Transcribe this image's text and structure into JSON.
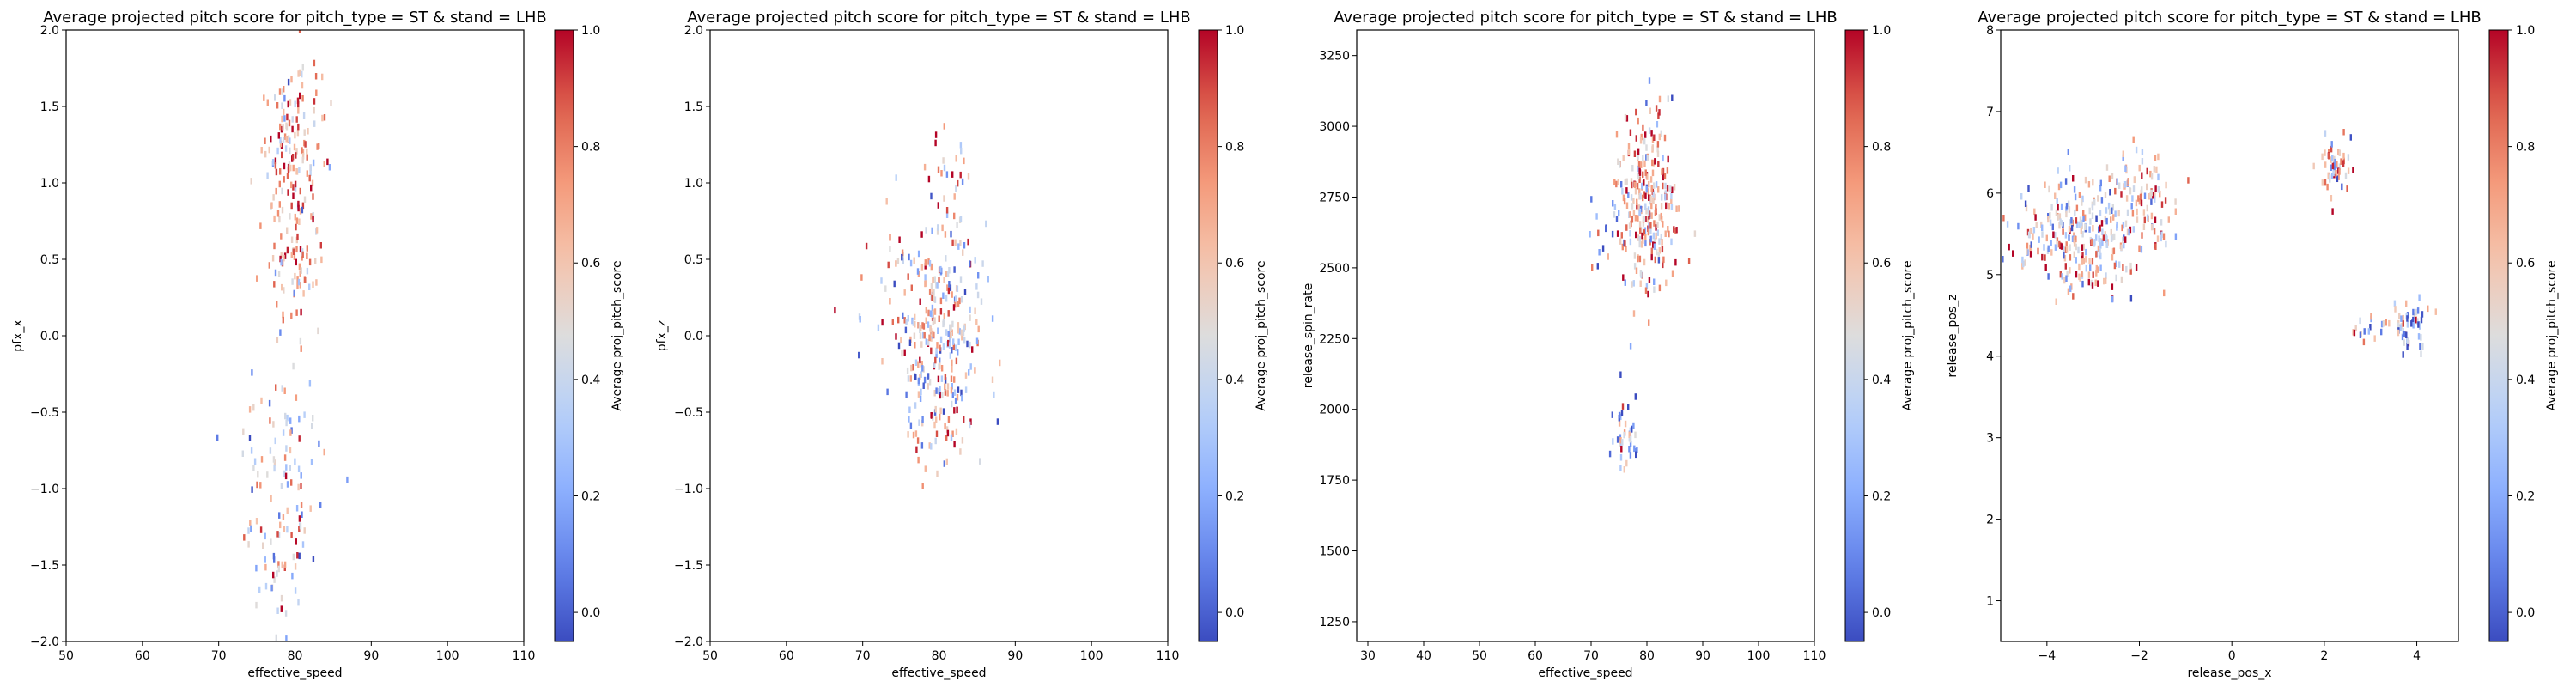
{
  "figure_title": "",
  "chart_data": [
    {
      "type": "heatmap",
      "title": "Average projected pitch score for pitch_type = ST & stand = LHB",
      "xlabel": "effective_speed",
      "ylabel": "pfx_x",
      "xlim": [
        50,
        110
      ],
      "ylim": [
        -2.0,
        2.0
      ],
      "xticks": [
        50,
        60,
        70,
        80,
        90,
        100,
        110
      ],
      "yticks": [
        -2.0,
        -1.5,
        -1.0,
        -0.5,
        0.0,
        0.5,
        1.0,
        1.5,
        2.0
      ],
      "xtick_labels": [
        "50",
        "60",
        "70",
        "80",
        "90",
        "100",
        "110"
      ],
      "ytick_labels": [
        "−2.0",
        "−1.5",
        "−1.0",
        "−0.5",
        "0.0",
        "0.5",
        "1.0",
        "1.5",
        "2.0"
      ],
      "colorbar": {
        "label": "Average proj_pitch_score",
        "cmap": "coolwarm",
        "range": [
          -0.05,
          1.0
        ],
        "ticks": [
          0.0,
          0.2,
          0.4,
          0.6,
          0.8,
          1.0
        ],
        "tick_labels": [
          "0.0",
          "0.2",
          "0.4",
          "0.6",
          "0.8",
          "1.0"
        ]
      },
      "clusters": [
        {
          "x": 80.0,
          "y": 1.15,
          "sx": 2.2,
          "sy": 0.38,
          "n": 170,
          "mean": 0.7,
          "spread": 0.22
        },
        {
          "x": 80.5,
          "y": 0.45,
          "sx": 1.5,
          "sy": 0.2,
          "n": 60,
          "mean": 0.65,
          "spread": 0.25
        },
        {
          "x": 78.0,
          "y": -1.2,
          "sx": 2.6,
          "sy": 0.45,
          "n": 120,
          "mean": 0.45,
          "spread": 0.3
        },
        {
          "x": 79.0,
          "y": -0.6,
          "sx": 0.8,
          "sy": 0.15,
          "n": 10,
          "mean": 0.4,
          "spread": 0.3
        }
      ]
    },
    {
      "type": "heatmap",
      "title": "Average projected pitch score for pitch_type = ST & stand = LHB",
      "xlabel": "effective_speed",
      "ylabel": "pfx_z",
      "xlim": [
        50,
        110
      ],
      "ylim": [
        -2.0,
        2.0
      ],
      "xticks": [
        50,
        60,
        70,
        80,
        90,
        100,
        110
      ],
      "yticks": [
        -2.0,
        -1.5,
        -1.0,
        -0.5,
        0.0,
        0.5,
        1.0,
        1.5,
        2.0
      ],
      "xtick_labels": [
        "50",
        "60",
        "70",
        "80",
        "90",
        "100",
        "110"
      ],
      "ytick_labels": [
        "−2.0",
        "−1.5",
        "−1.0",
        "−0.5",
        "0.0",
        "0.5",
        "1.0",
        "1.5",
        "2.0"
      ],
      "colorbar": {
        "label": "Average proj_pitch_score",
        "cmap": "coolwarm",
        "range": [
          -0.05,
          1.0
        ],
        "ticks": [
          0.0,
          0.2,
          0.4,
          0.6,
          0.8,
          1.0
        ],
        "tick_labels": [
          "0.0",
          "0.2",
          "0.4",
          "0.6",
          "0.8",
          "1.0"
        ]
      },
      "clusters": [
        {
          "x": 80.0,
          "y": 0.0,
          "sx": 2.8,
          "sy": 0.42,
          "n": 330,
          "mean": 0.55,
          "spread": 0.3
        },
        {
          "x": 81.0,
          "y": 1.0,
          "sx": 1.5,
          "sy": 0.2,
          "n": 20,
          "mean": 0.7,
          "spread": 0.25
        },
        {
          "x": 73.0,
          "y": 0.3,
          "sx": 2.5,
          "sy": 0.35,
          "n": 25,
          "mean": 0.5,
          "spread": 0.35
        }
      ]
    },
    {
      "type": "heatmap",
      "title": "Average projected pitch score for pitch_type = ST & stand = LHB",
      "xlabel": "effective_speed",
      "ylabel": "release_spin_rate",
      "xlim": [
        28,
        110
      ],
      "ylim": [
        1180,
        3340
      ],
      "xticks": [
        30,
        40,
        50,
        60,
        70,
        80,
        90,
        100,
        110
      ],
      "yticks": [
        1250,
        1500,
        1750,
        2000,
        2250,
        2500,
        2750,
        3000,
        3250
      ],
      "xtick_labels": [
        "30",
        "40",
        "50",
        "60",
        "70",
        "80",
        "90",
        "100",
        "110"
      ],
      "ytick_labels": [
        "1250",
        "1500",
        "1750",
        "2000",
        "2250",
        "2500",
        "2750",
        "3000",
        "3250"
      ],
      "colorbar": {
        "label": "Average proj_pitch_score",
        "cmap": "coolwarm",
        "range": [
          -0.05,
          1.0
        ],
        "ticks": [
          0.0,
          0.2,
          0.4,
          0.6,
          0.8,
          1.0
        ],
        "tick_labels": [
          "0.0",
          "0.2",
          "0.4",
          "0.6",
          "0.8",
          "1.0"
        ]
      },
      "clusters": [
        {
          "x": 80.0,
          "y": 2700,
          "sx": 2.6,
          "sy": 140,
          "n": 260,
          "mean": 0.65,
          "spread": 0.25
        },
        {
          "x": 81.0,
          "y": 3000,
          "sx": 1.5,
          "sy": 90,
          "n": 25,
          "mean": 0.7,
          "spread": 0.25
        },
        {
          "x": 76.5,
          "y": 1900,
          "sx": 1.2,
          "sy": 70,
          "n": 45,
          "mean": 0.25,
          "spread": 0.3
        },
        {
          "x": 72.5,
          "y": 2650,
          "sx": 1.2,
          "sy": 90,
          "n": 15,
          "mean": 0.3,
          "spread": 0.3
        }
      ]
    },
    {
      "type": "heatmap",
      "title": "Average projected pitch score for pitch_type = ST & stand = LHB",
      "xlabel": "release_pos_x",
      "ylabel": "release_pos_z",
      "xlim": [
        -5.0,
        4.9
      ],
      "ylim": [
        0.5,
        8.0
      ],
      "xticks": [
        -4,
        -2,
        0,
        2,
        4
      ],
      "yticks": [
        1,
        2,
        3,
        4,
        5,
        6,
        7,
        8
      ],
      "xtick_labels": [
        "−4",
        "−2",
        "0",
        "2",
        "4"
      ],
      "ytick_labels": [
        "1",
        "2",
        "3",
        "4",
        "5",
        "6",
        "7",
        "8"
      ],
      "colorbar": {
        "label": "Average proj_pitch_score",
        "cmap": "coolwarm",
        "range": [
          -0.05,
          1.0
        ],
        "ticks": [
          0.0,
          0.2,
          0.4,
          0.6,
          0.8,
          1.0
        ],
        "tick_labels": [
          "0.0",
          "0.2",
          "0.4",
          "0.6",
          "0.8",
          "1.0"
        ]
      },
      "clusters": [
        {
          "x": -3.1,
          "y": 5.5,
          "sx": 0.6,
          "sy": 0.35,
          "n": 260,
          "mean": 0.55,
          "spread": 0.3
        },
        {
          "x": -2.0,
          "y": 5.95,
          "sx": 0.35,
          "sy": 0.28,
          "n": 90,
          "mean": 0.6,
          "spread": 0.3
        },
        {
          "x": -4.3,
          "y": 5.4,
          "sx": 0.35,
          "sy": 0.2,
          "n": 30,
          "mean": 0.5,
          "spread": 0.3
        },
        {
          "x": 2.2,
          "y": 6.3,
          "sx": 0.15,
          "sy": 0.18,
          "n": 55,
          "mean": 0.65,
          "spread": 0.25
        },
        {
          "x": 3.8,
          "y": 4.35,
          "sx": 0.22,
          "sy": 0.15,
          "n": 55,
          "mean": 0.35,
          "spread": 0.3
        },
        {
          "x": 2.9,
          "y": 4.35,
          "sx": 0.25,
          "sy": 0.1,
          "n": 15,
          "mean": 0.5,
          "spread": 0.3
        }
      ]
    }
  ]
}
